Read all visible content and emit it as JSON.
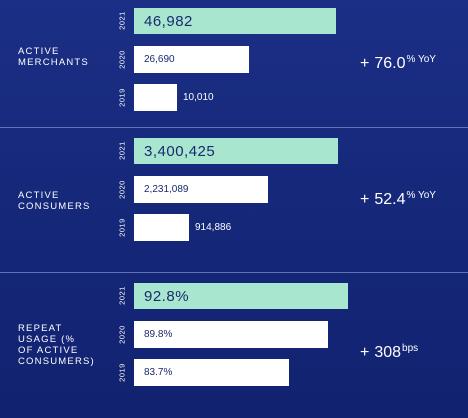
{
  "colors": {
    "background": "#172a7e",
    "highlight_bar": "#a8e6cf",
    "bar": "#ffffff",
    "text_dark": "#1a2a6e"
  },
  "chart_data": [
    {
      "type": "bar",
      "orientation": "horizontal",
      "title": "ACTIVE\nMERCHANTS",
      "categories": [
        "2021",
        "2020",
        "2019"
      ],
      "values": [
        46982,
        26690,
        10010
      ],
      "value_labels": [
        "46,982",
        "26,690",
        "10,010"
      ],
      "change": {
        "prefix": "+",
        "value": "76.0",
        "unit": "% YoY"
      }
    },
    {
      "type": "bar",
      "orientation": "horizontal",
      "title": "ACTIVE\nCONSUMERS",
      "categories": [
        "2021",
        "2020",
        "2019"
      ],
      "values": [
        3400425,
        2231089,
        914886
      ],
      "value_labels": [
        "3,400,425",
        "2,231,089",
        "914,886"
      ],
      "change": {
        "prefix": "+",
        "value": "52.4",
        "unit": "% YoY"
      }
    },
    {
      "type": "bar",
      "orientation": "horizontal",
      "title": "REPEAT\nUSAGE (%\nOF ACTIVE\nCONSUMERS)",
      "categories": [
        "2021",
        "2020",
        "2019"
      ],
      "values": [
        92.8,
        89.8,
        83.7
      ],
      "value_labels": [
        "92.8%",
        "89.8%",
        "83.7%"
      ],
      "change": {
        "prefix": "+",
        "value": "308",
        "unit": "bps"
      }
    }
  ]
}
